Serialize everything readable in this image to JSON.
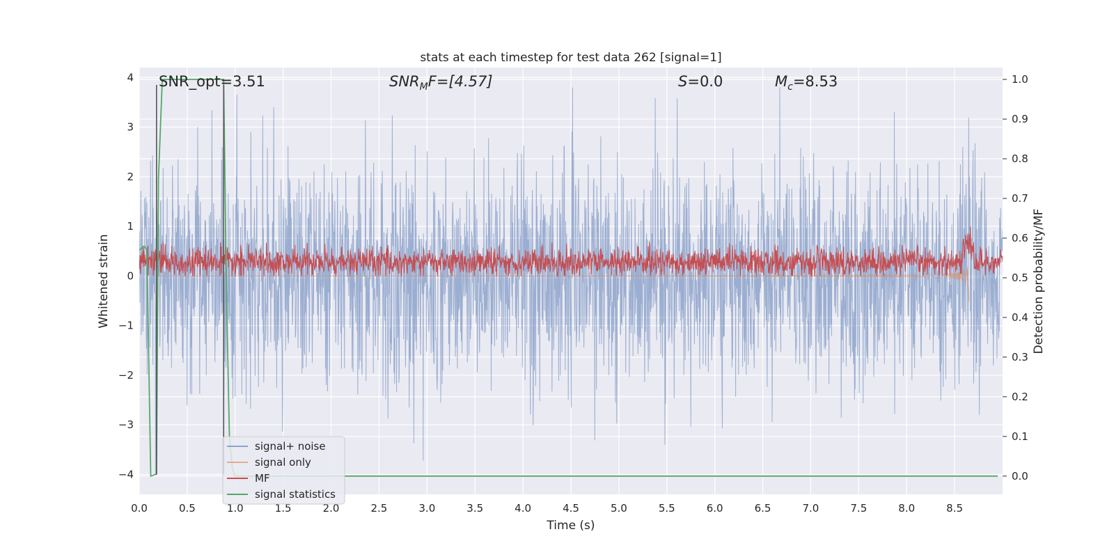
{
  "chart_data": {
    "type": "line",
    "title": "stats at each timestep for test data 262 [signal=1]",
    "xlabel": "Time (s)",
    "ylabel_left": "Whitened strain",
    "ylabel_right": "Detection probability/MF",
    "xlim": [
      0.0,
      9.0
    ],
    "ylim_left": [
      -4.4,
      4.2
    ],
    "ylim_right": [
      -0.046,
      1.03
    ],
    "xticks": [
      "0.0",
      "0.5",
      "1.0",
      "1.5",
      "2.0",
      "2.5",
      "3.0",
      "3.5",
      "4.0",
      "4.5",
      "5.0",
      "5.5",
      "6.0",
      "6.5",
      "7.0",
      "7.5",
      "8.0",
      "8.5"
    ],
    "yticks_left": [
      "−4",
      "−3",
      "−2",
      "−1",
      "0",
      "1",
      "2",
      "3",
      "4"
    ],
    "yticks_right": [
      "0.0",
      "0.1",
      "0.2",
      "0.3",
      "0.4",
      "0.5",
      "0.6",
      "0.7",
      "0.8",
      "0.9",
      "1.0"
    ],
    "grid": true,
    "legend_position": "lower-left",
    "annotations": {
      "snr_opt": "SNR_opt=3.51",
      "snr_mf_main": "SNR",
      "snr_mf_sub": "M",
      "snr_mf_rest": "F=[4.57]",
      "s_main": "S",
      "s_rest": "=0.0",
      "mc_main": "M",
      "mc_sub": "c",
      "mc_rest": "=8.53"
    },
    "markers": [
      {
        "name": "signal start",
        "x": 0.18,
        "y_range": [
          -4.0,
          3.85
        ]
      },
      {
        "name": "signal end",
        "x": 0.88,
        "y_range": [
          -4.0,
          3.85
        ]
      }
    ],
    "series": [
      {
        "name": "signal+ noise",
        "color": "#4c72b0",
        "axis": "left",
        "description_values": {
          "amplitude_range": [
            -4.0,
            3.8
          ],
          "duration": [
            0.0,
            9.0
          ]
        }
      },
      {
        "name": "signal only",
        "color": "#dd8452",
        "axis": "left",
        "description_values": {
          "chirp_end": 8.65,
          "max_amplitude": 0.55
        }
      },
      {
        "name": "MF",
        "color": "#c44e52",
        "axis": "left",
        "description_values": {
          "mean": 0.28,
          "range": [
            0.0,
            1.0
          ]
        }
      },
      {
        "name": "signal statistics",
        "color": "#55a868",
        "axis": "right",
        "x": [
          0.0,
          0.05,
          0.08,
          0.12,
          0.18,
          0.2,
          0.24,
          0.26,
          0.3,
          0.35,
          0.4,
          0.45,
          0.5,
          0.55,
          0.6,
          0.65,
          0.7,
          0.75,
          0.8,
          0.85,
          0.88,
          0.91,
          0.94,
          0.97,
          1.0,
          2.0,
          3.0,
          4.0,
          5.0,
          6.0,
          7.0,
          8.0,
          8.95
        ],
        "y": [
          0.57,
          0.58,
          0.57,
          0.0,
          0.005,
          0.75,
          1.0,
          1.0,
          1.0,
          1.0,
          1.0,
          1.0,
          1.0,
          1.0,
          1.0,
          1.0,
          1.0,
          1.0,
          1.0,
          1.0,
          1.0,
          0.45,
          0.1,
          0.02,
          0.0,
          0.0,
          0.0,
          0.0,
          0.0,
          0.0,
          0.0,
          0.0,
          0.0
        ]
      }
    ]
  },
  "colors": {
    "plot_bg": "#eaeaf2",
    "grid": "#ffffff",
    "noise": "#4c72b0",
    "signal": "#dd8452",
    "mf": "#c44e52",
    "stat": "#55a868",
    "marker": "#555555"
  }
}
